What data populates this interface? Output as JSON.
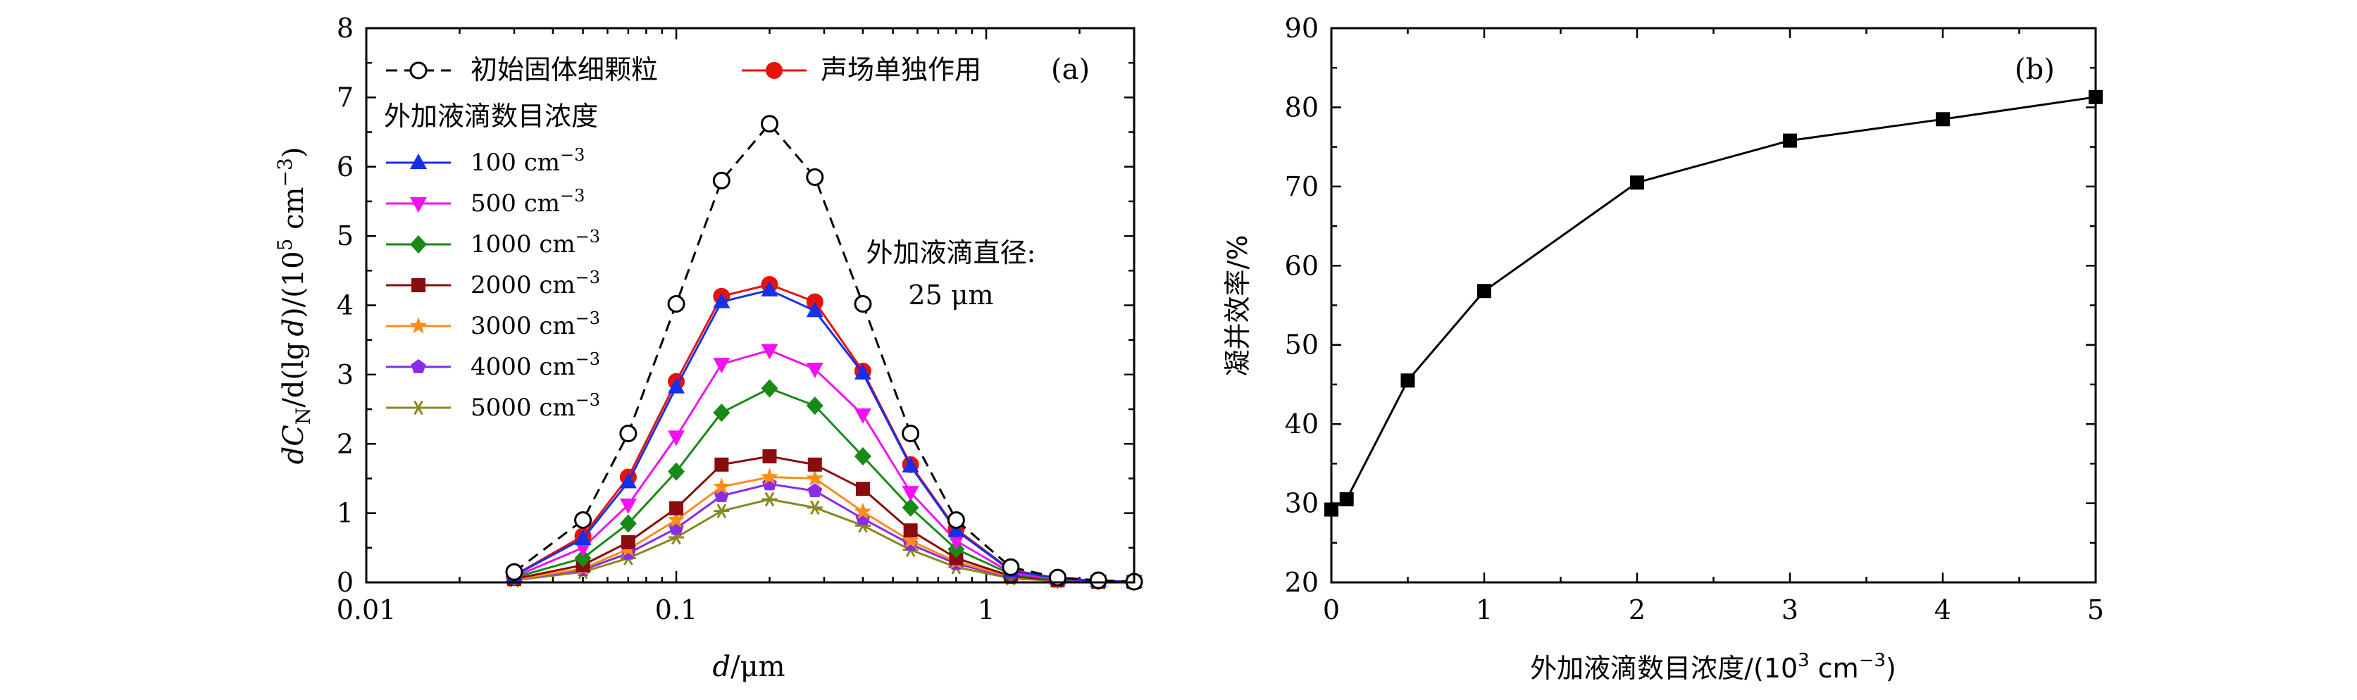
{
  "chart_data": [
    {
      "type": "line",
      "panel_label": "(a)",
      "xlabel": "d/μm",
      "ylabel": "dC_N/d(lg d)/(10^5 cm^-3)",
      "ylabel_parts": {
        "a": "d",
        "b": "C",
        "c": "N",
        "d": "/d(lg",
        "e": "d",
        "f": ")/(10",
        "g": "5",
        "h": " cm",
        "i": "−3",
        "j": ")"
      },
      "xscale": "log",
      "xlim": [
        0.01,
        3
      ],
      "ylim": [
        0,
        8
      ],
      "xticks": [
        0.01,
        0.1,
        1
      ],
      "xtick_labels": [
        "0.01",
        "0.1",
        "1"
      ],
      "yticks": [
        0,
        1,
        2,
        3,
        4,
        5,
        6,
        7,
        8
      ],
      "ytick_labels": [
        "0",
        "1",
        "2",
        "3",
        "4",
        "5",
        "6",
        "7",
        "8"
      ],
      "x": [
        0.03,
        0.05,
        0.07,
        0.1,
        0.14,
        0.2,
        0.28,
        0.4,
        0.57,
        0.8,
        1.2,
        1.7,
        2.3,
        3.0
      ],
      "legend_header": "外加液滴数目浓度",
      "annotation_line1": "外加液滴直径:",
      "annotation_line2": "25 μm",
      "series": [
        {
          "name": "初始固体细颗粒",
          "color": "#000000",
          "marker": "circle-open",
          "dashed": true,
          "values": [
            0.15,
            0.9,
            2.15,
            4.02,
            5.8,
            6.62,
            5.85,
            4.02,
            2.15,
            0.9,
            0.22,
            0.07,
            0.03,
            0.01
          ]
        },
        {
          "name": "声场单独作用",
          "color": "#e8120c",
          "marker": "circle",
          "dashed": false,
          "values": [
            0.1,
            0.67,
            1.52,
            2.9,
            4.13,
            4.3,
            4.05,
            3.05,
            1.7,
            0.77,
            0.18,
            0.06,
            0.02,
            0.01
          ]
        },
        {
          "name": "100 cm⁻³",
          "base": "100 cm",
          "sup": "−3",
          "color": "#1530e8",
          "marker": "triangle-up",
          "dashed": false,
          "values": [
            0.1,
            0.63,
            1.45,
            2.82,
            4.05,
            4.22,
            3.92,
            3.02,
            1.68,
            0.75,
            0.17,
            0.06,
            0.02,
            0.01
          ]
        },
        {
          "name": "500 cm⁻³",
          "base": "500 cm",
          "sup": "−3",
          "color": "#f012f0",
          "marker": "triangle-down",
          "dashed": false,
          "values": [
            0.08,
            0.5,
            1.12,
            2.1,
            3.15,
            3.35,
            3.08,
            2.42,
            1.3,
            0.6,
            0.14,
            0.05,
            0.02,
            0.01
          ]
        },
        {
          "name": "1000 cm⁻³",
          "base": "1000 cm",
          "sup": "−3",
          "color": "#178a17",
          "marker": "diamond",
          "dashed": false,
          "values": [
            0.07,
            0.35,
            0.85,
            1.6,
            2.45,
            2.8,
            2.55,
            1.82,
            1.08,
            0.48,
            0.12,
            0.04,
            0.02,
            0.01
          ]
        },
        {
          "name": "2000 cm⁻³",
          "base": "2000 cm",
          "sup": "−3",
          "color": "#8b0c0c",
          "marker": "square",
          "dashed": false,
          "values": [
            0.05,
            0.25,
            0.58,
            1.07,
            1.7,
            1.82,
            1.7,
            1.35,
            0.75,
            0.35,
            0.09,
            0.03,
            0.01,
            0.01
          ]
        },
        {
          "name": "3000 cm⁻³",
          "base": "3000 cm",
          "sup": "−3",
          "color": "#ff8c1a",
          "marker": "star",
          "dashed": false,
          "values": [
            0.04,
            0.2,
            0.48,
            0.9,
            1.38,
            1.52,
            1.5,
            1.02,
            0.6,
            0.3,
            0.08,
            0.03,
            0.01,
            0.01
          ]
        },
        {
          "name": "4000 cm⁻³",
          "base": "4000 cm",
          "sup": "−3",
          "color": "#8a2be8",
          "marker": "pentagon",
          "dashed": false,
          "values": [
            0.04,
            0.18,
            0.42,
            0.78,
            1.25,
            1.42,
            1.32,
            0.92,
            0.55,
            0.27,
            0.07,
            0.03,
            0.01,
            0.01
          ]
        },
        {
          "name": "5000 cm⁻³",
          "base": "5000 cm",
          "sup": "−3",
          "color": "#888820",
          "marker": "asterisk",
          "dashed": false,
          "values": [
            0.03,
            0.15,
            0.35,
            0.65,
            1.03,
            1.2,
            1.08,
            0.82,
            0.47,
            0.22,
            0.06,
            0.02,
            0.01,
            0.01
          ]
        }
      ]
    },
    {
      "type": "line",
      "panel_label": "(b)",
      "xlabel": "外加液滴数目浓度/(10³ cm⁻³)",
      "xlabel_parts": {
        "a": "外加液滴数目浓度/(10",
        "b": "3",
        "c": " cm",
        "d": "−3",
        "e": ")"
      },
      "ylabel": "凝并效率/%",
      "xlim": [
        0,
        5
      ],
      "ylim": [
        20,
        90
      ],
      "xticks": [
        0,
        1,
        2,
        3,
        4,
        5
      ],
      "xtick_labels": [
        "0",
        "1",
        "2",
        "3",
        "4",
        "5"
      ],
      "yticks": [
        20,
        30,
        40,
        50,
        60,
        70,
        80,
        90
      ],
      "ytick_labels": [
        "20",
        "30",
        "40",
        "50",
        "60",
        "70",
        "80",
        "90"
      ],
      "series": [
        {
          "name": "凝并效率",
          "color": "#000000",
          "marker": "square",
          "x": [
            0,
            0.1,
            0.5,
            1,
            2,
            3,
            4,
            5
          ],
          "values": [
            29.2,
            30.5,
            45.5,
            56.8,
            70.5,
            75.8,
            78.5,
            81.3
          ]
        }
      ]
    }
  ]
}
